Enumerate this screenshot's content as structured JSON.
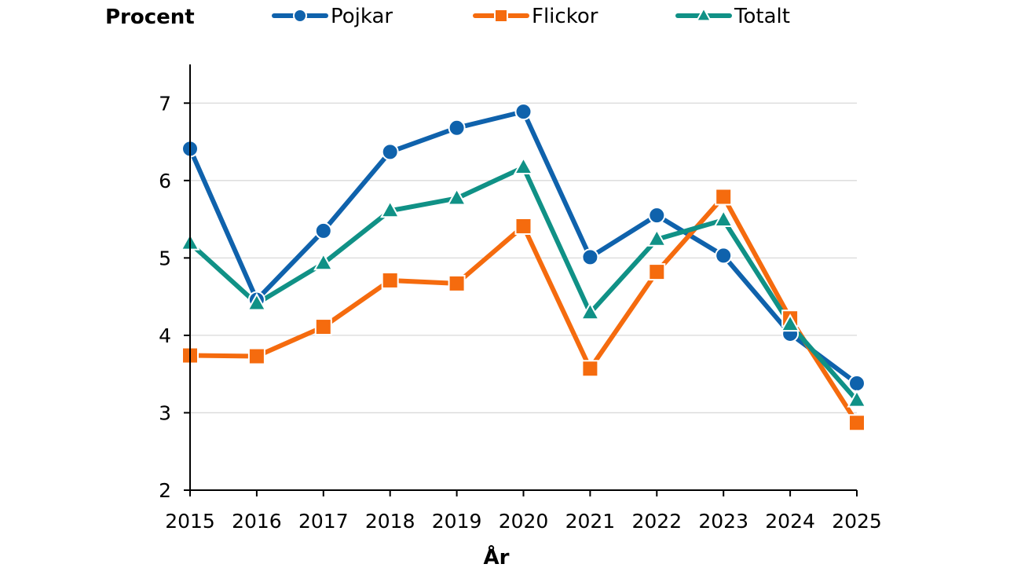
{
  "chart_data": {
    "type": "line",
    "ylabel": "Procent",
    "xlabel": "År",
    "x": [
      "2015",
      "2016",
      "2017",
      "2018",
      "2019",
      "2020",
      "2021",
      "2022",
      "2023",
      "2024",
      "2025"
    ],
    "ylim": [
      2,
      7.5
    ],
    "yticks": [
      2,
      3,
      4,
      5,
      6,
      7
    ],
    "grid": "horizontal",
    "legend_position": "top",
    "series": [
      {
        "name": "Pojkar",
        "marker": "circle",
        "color": "#0f62ac",
        "values": [
          6.41,
          4.46,
          5.35,
          6.37,
          6.68,
          6.89,
          5.01,
          5.55,
          5.03,
          4.02,
          3.38
        ]
      },
      {
        "name": "Flickor",
        "marker": "square",
        "color": "#f56b0e",
        "values": [
          3.74,
          3.73,
          4.11,
          4.71,
          4.67,
          5.41,
          3.57,
          4.82,
          5.79,
          4.22,
          2.87
        ]
      },
      {
        "name": "Totalt",
        "marker": "triangle",
        "color": "#109186",
        "values": [
          5.19,
          4.41,
          4.93,
          5.61,
          5.77,
          6.17,
          4.29,
          5.24,
          5.49,
          4.14,
          3.16
        ]
      }
    ]
  }
}
